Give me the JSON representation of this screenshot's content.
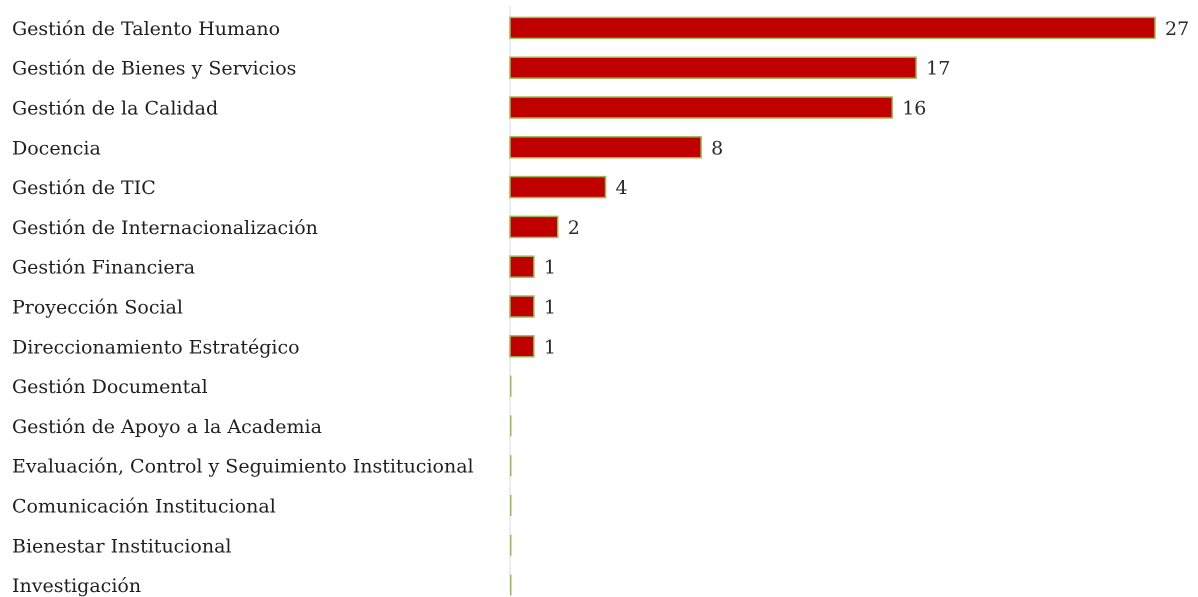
{
  "chart_data": {
    "type": "bar",
    "orientation": "horizontal",
    "categories": [
      "Gestión de Talento Humano",
      "Gestión de Bienes y Servicios",
      "Gestión de la Calidad",
      "Docencia",
      "Gestión de TIC",
      "Gestión de Internacionalización",
      "Gestión Financiera",
      "Proyección Social",
      "Direccionamiento Estratégico",
      "Gestión Documental",
      "Gestión de Apoyo a la Academia",
      "Evaluación, Control y Seguimiento Institucional",
      "Comunicación Institucional",
      "Bienestar Institucional",
      "Investigación"
    ],
    "values": [
      27,
      17,
      16,
      8,
      4,
      2,
      1,
      1,
      1,
      0,
      0,
      0,
      0,
      0,
      0
    ],
    "data_labels": [
      "27",
      "17",
      "16",
      "8",
      "4",
      "2",
      "1",
      "1",
      "1",
      "",
      "",
      "",
      "",
      "",
      ""
    ],
    "title": "",
    "xlabel": "",
    "ylabel": "",
    "xlim": [
      0,
      27
    ],
    "grid": false,
    "legend": "none",
    "colors": {
      "bar_fill": "#c00000",
      "bar_edge": "#9bbb59",
      "axis_line": "#d9d9d9"
    }
  }
}
